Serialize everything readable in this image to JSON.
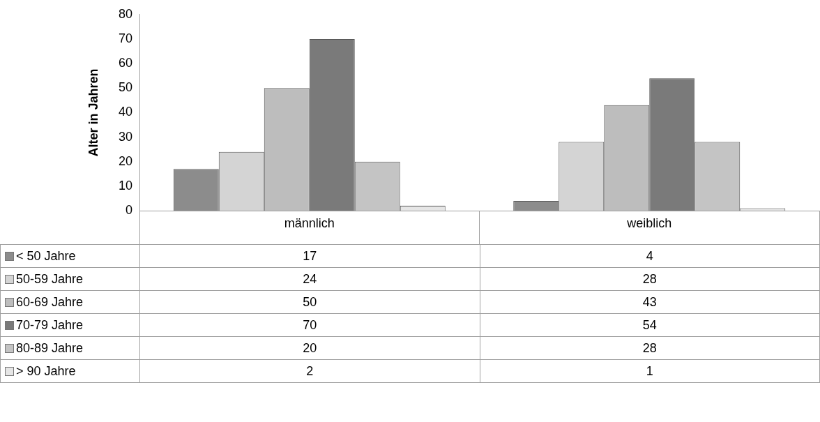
{
  "chart_data": {
    "type": "bar",
    "ylabel": "Alter in Jahren",
    "categories": [
      "männlich",
      "weiblich"
    ],
    "series": [
      {
        "name": "< 50 Jahre",
        "color": "#8c8c8c",
        "values": [
          17,
          4
        ]
      },
      {
        "name": "50-59 Jahre",
        "color": "#d4d4d4",
        "values": [
          24,
          28
        ]
      },
      {
        "name": "60-69 Jahre",
        "color": "#bdbdbd",
        "values": [
          50,
          43
        ]
      },
      {
        "name": "70-79 Jahre",
        "color": "#7a7a7a",
        "values": [
          70,
          54
        ]
      },
      {
        "name": "80-89 Jahre",
        "color": "#c4c4c4",
        "values": [
          20,
          28
        ]
      },
      {
        "name": "> 90 Jahre",
        "color": "#e6e6e6",
        "values": [
          2,
          1
        ]
      }
    ],
    "ylim": [
      0,
      80
    ],
    "yticks": [
      0,
      10,
      20,
      30,
      40,
      50,
      60,
      70,
      80
    ],
    "grid": false,
    "legend": "bottom",
    "data_labels": true
  }
}
